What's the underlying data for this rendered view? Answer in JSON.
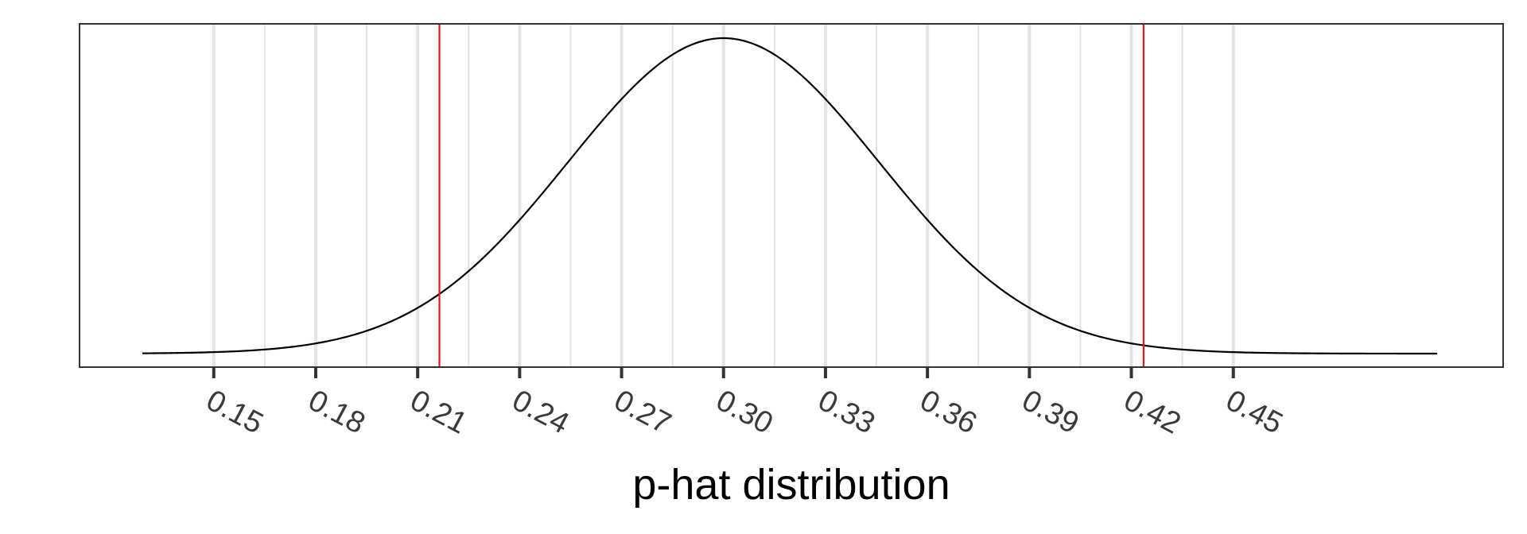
{
  "chart_data": {
    "type": "line",
    "title": "",
    "xlabel": "p-hat distribution",
    "ylabel": "",
    "xlim": [
      0.1105,
      0.5294
    ],
    "ylim": [
      0,
      1
    ],
    "x_ticks": [
      0.15,
      0.18,
      0.21,
      0.24,
      0.27,
      0.3,
      0.33,
      0.36,
      0.39,
      0.42,
      0.45
    ],
    "x_tick_labels": [
      "0.15",
      "0.18",
      "0.21",
      "0.24",
      "0.27",
      "0.30",
      "0.33",
      "0.36",
      "0.39",
      "0.42",
      "0.45"
    ],
    "x_minor_grid": [
      0.165,
      0.195,
      0.225,
      0.255,
      0.285,
      0.315,
      0.345,
      0.375,
      0.405,
      0.435
    ],
    "grid": "vertical",
    "y_axis_ticks_shown": false,
    "curve": {
      "distribution": "normal",
      "mean": 0.3,
      "sd": 0.0458,
      "x_range": [
        0.129,
        0.51
      ]
    },
    "vlines": [
      {
        "x": 0.2164,
        "color": "#e31a1c"
      },
      {
        "x": 0.4236,
        "color": "#e31a1c"
      }
    ],
    "colors": {
      "curve": "#000000",
      "grid": "#e3e3e3",
      "frame": "#333333",
      "vline": "#e31a1c"
    }
  }
}
